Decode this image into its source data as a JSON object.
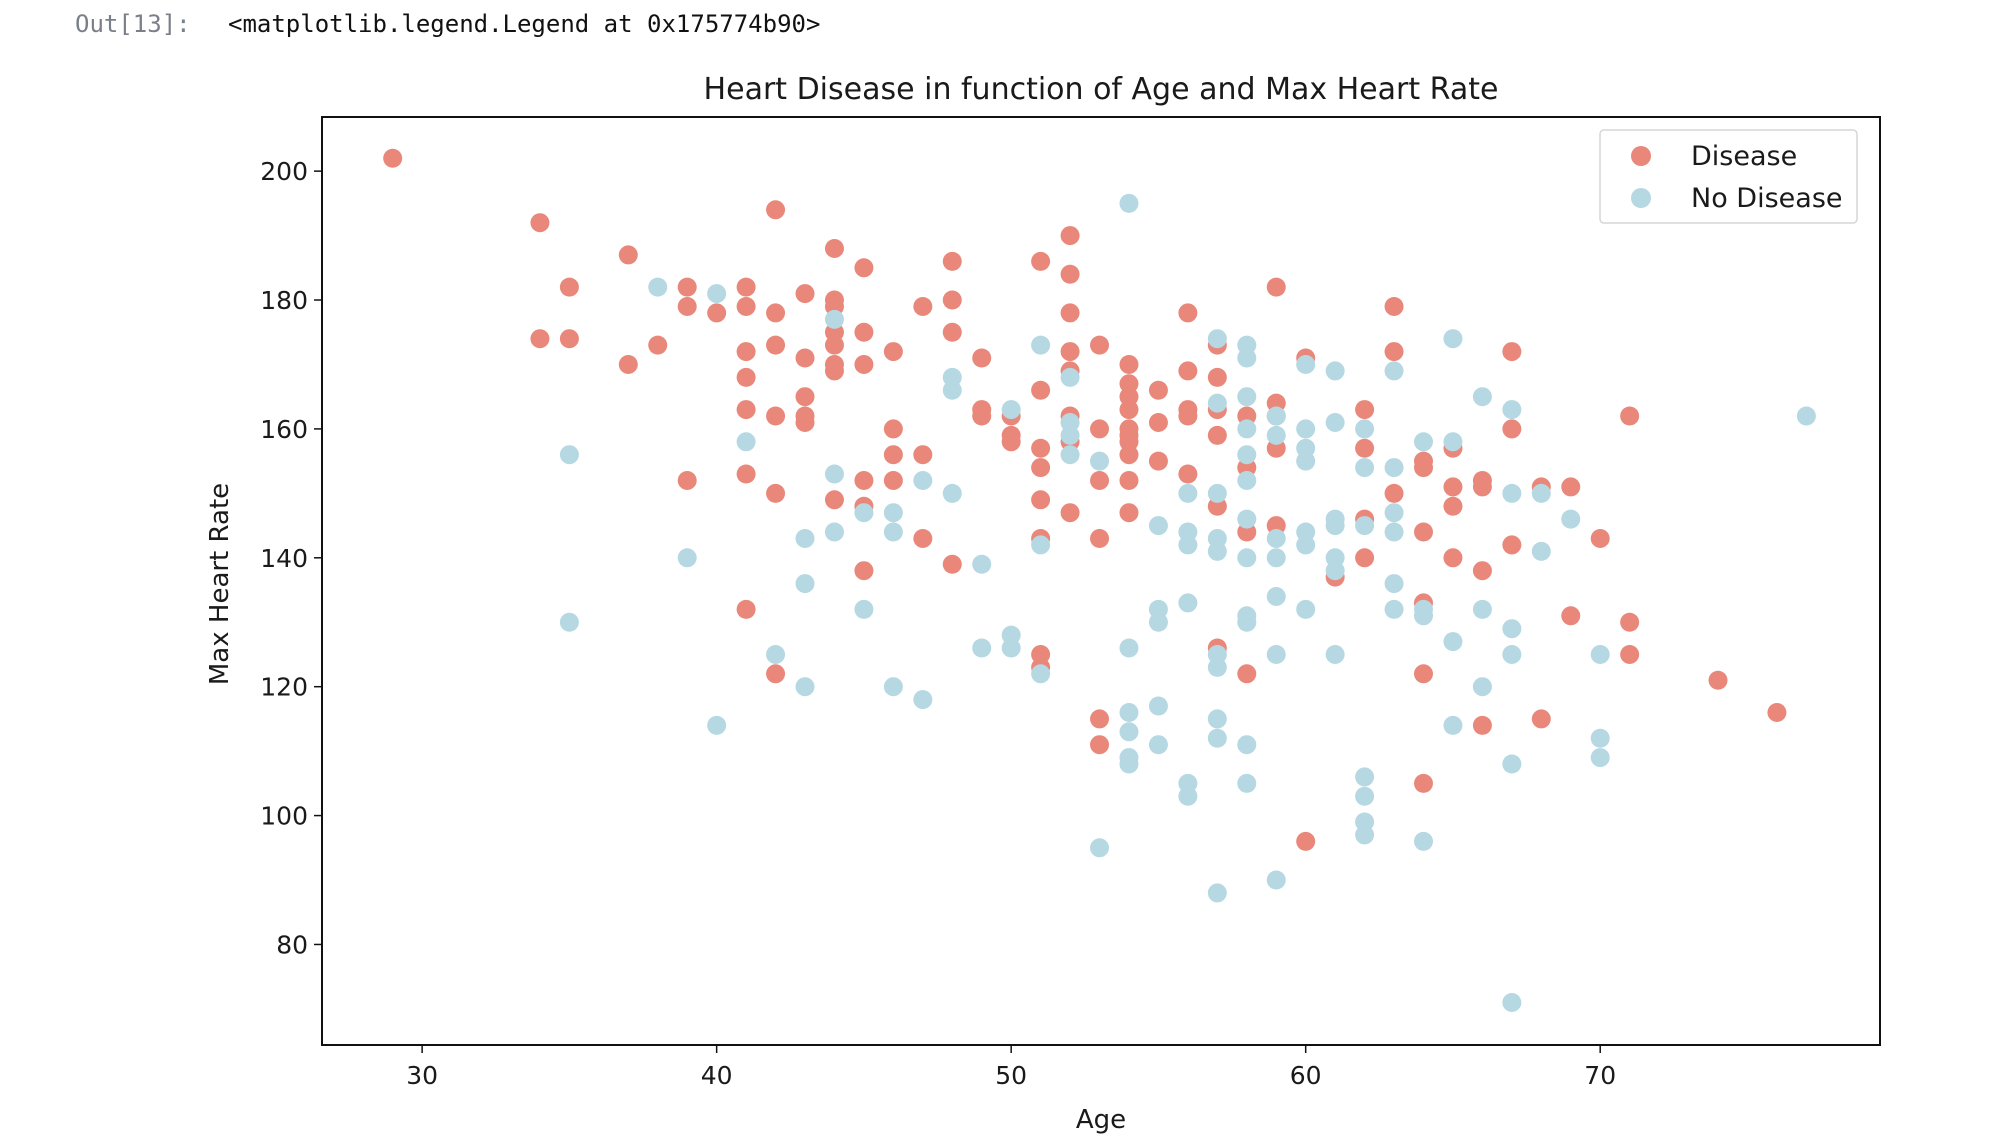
{
  "output": {
    "prompt": "Out[13]:",
    "text": "<matplotlib.legend.Legend at 0x175774b90>"
  },
  "colors": {
    "disease": "#E9887A",
    "no_disease": "#B5D8E3"
  },
  "chart_data": {
    "type": "scatter",
    "title": "Heart Disease in function of Age and Max Heart Rate",
    "xlabel": "Age",
    "ylabel": "Max Heart Rate",
    "xlim": [
      26.6,
      79.5
    ],
    "ylim": [
      64.4,
      208.4
    ],
    "xticks": [
      30,
      40,
      50,
      60,
      70
    ],
    "yticks": [
      80,
      100,
      120,
      140,
      160,
      180,
      200
    ],
    "grid": false,
    "legend": {
      "placement": "top-right",
      "entries": [
        "Disease",
        "No Disease"
      ]
    },
    "series": [
      {
        "name": "Disease",
        "points": [
          [
            29,
            202
          ],
          [
            34,
            192
          ],
          [
            34,
            174
          ],
          [
            35,
            182
          ],
          [
            35,
            174
          ],
          [
            37,
            187
          ],
          [
            37,
            170
          ],
          [
            38,
            173
          ],
          [
            39,
            182
          ],
          [
            39,
            179
          ],
          [
            39,
            152
          ],
          [
            40,
            178
          ],
          [
            41,
            182
          ],
          [
            41,
            179
          ],
          [
            41,
            172
          ],
          [
            41,
            168
          ],
          [
            41,
            163
          ],
          [
            41,
            153
          ],
          [
            41,
            132
          ],
          [
            42,
            194
          ],
          [
            42,
            178
          ],
          [
            42,
            173
          ],
          [
            42,
            162
          ],
          [
            42,
            150
          ],
          [
            42,
            122
          ],
          [
            43,
            181
          ],
          [
            43,
            171
          ],
          [
            43,
            165
          ],
          [
            43,
            162
          ],
          [
            43,
            161
          ],
          [
            44,
            188
          ],
          [
            44,
            180
          ],
          [
            44,
            179
          ],
          [
            44,
            175
          ],
          [
            44,
            173
          ],
          [
            44,
            170
          ],
          [
            44,
            169
          ],
          [
            44,
            149
          ],
          [
            45,
            185
          ],
          [
            45,
            175
          ],
          [
            45,
            170
          ],
          [
            45,
            152
          ],
          [
            45,
            148
          ],
          [
            45,
            138
          ],
          [
            46,
            172
          ],
          [
            46,
            160
          ],
          [
            46,
            156
          ],
          [
            46,
            152
          ],
          [
            47,
            179
          ],
          [
            47,
            156
          ],
          [
            47,
            143
          ],
          [
            48,
            186
          ],
          [
            48,
            180
          ],
          [
            48,
            175
          ],
          [
            48,
            139
          ],
          [
            49,
            171
          ],
          [
            49,
            163
          ],
          [
            49,
            162
          ],
          [
            50,
            162
          ],
          [
            50,
            159
          ],
          [
            50,
            158
          ],
          [
            51,
            186
          ],
          [
            51,
            166
          ],
          [
            51,
            157
          ],
          [
            51,
            154
          ],
          [
            51,
            149
          ],
          [
            51,
            143
          ],
          [
            51,
            125
          ],
          [
            51,
            123
          ],
          [
            52,
            190
          ],
          [
            52,
            184
          ],
          [
            52,
            178
          ],
          [
            52,
            172
          ],
          [
            52,
            169
          ],
          [
            52,
            162
          ],
          [
            52,
            158
          ],
          [
            52,
            147
          ],
          [
            53,
            173
          ],
          [
            53,
            160
          ],
          [
            53,
            152
          ],
          [
            53,
            143
          ],
          [
            53,
            115
          ],
          [
            53,
            111
          ],
          [
            54,
            170
          ],
          [
            54,
            167
          ],
          [
            54,
            165
          ],
          [
            54,
            163
          ],
          [
            54,
            160
          ],
          [
            54,
            159
          ],
          [
            54,
            158
          ],
          [
            54,
            156
          ],
          [
            54,
            152
          ],
          [
            54,
            147
          ],
          [
            55,
            166
          ],
          [
            55,
            161
          ],
          [
            55,
            155
          ],
          [
            56,
            178
          ],
          [
            56,
            169
          ],
          [
            56,
            163
          ],
          [
            56,
            162
          ],
          [
            56,
            153
          ],
          [
            57,
            173
          ],
          [
            57,
            168
          ],
          [
            57,
            163
          ],
          [
            57,
            159
          ],
          [
            57,
            148
          ],
          [
            57,
            126
          ],
          [
            58,
            162
          ],
          [
            58,
            154
          ],
          [
            58,
            144
          ],
          [
            58,
            122
          ],
          [
            59,
            182
          ],
          [
            59,
            164
          ],
          [
            59,
            162
          ],
          [
            59,
            157
          ],
          [
            59,
            145
          ],
          [
            60,
            171
          ],
          [
            60,
            96
          ],
          [
            61,
            137
          ],
          [
            62,
            163
          ],
          [
            62,
            157
          ],
          [
            62,
            146
          ],
          [
            62,
            140
          ],
          [
            63,
            179
          ],
          [
            63,
            172
          ],
          [
            63,
            150
          ],
          [
            64,
            155
          ],
          [
            64,
            154
          ],
          [
            64,
            144
          ],
          [
            64,
            133
          ],
          [
            64,
            122
          ],
          [
            64,
            105
          ],
          [
            65,
            157
          ],
          [
            65,
            151
          ],
          [
            65,
            148
          ],
          [
            65,
            140
          ],
          [
            66,
            152
          ],
          [
            66,
            151
          ],
          [
            66,
            138
          ],
          [
            66,
            114
          ],
          [
            67,
            172
          ],
          [
            67,
            160
          ],
          [
            67,
            142
          ],
          [
            68,
            151
          ],
          [
            68,
            115
          ],
          [
            69,
            151
          ],
          [
            69,
            131
          ],
          [
            70,
            143
          ],
          [
            71,
            162
          ],
          [
            71,
            130
          ],
          [
            71,
            125
          ],
          [
            74,
            121
          ],
          [
            76,
            116
          ]
        ]
      },
      {
        "name": "No Disease",
        "points": [
          [
            35,
            156
          ],
          [
            35,
            130
          ],
          [
            38,
            182
          ],
          [
            39,
            140
          ],
          [
            40,
            181
          ],
          [
            40,
            114
          ],
          [
            41,
            158
          ],
          [
            42,
            125
          ],
          [
            43,
            143
          ],
          [
            43,
            136
          ],
          [
            43,
            120
          ],
          [
            44,
            177
          ],
          [
            44,
            153
          ],
          [
            44,
            144
          ],
          [
            45,
            147
          ],
          [
            45,
            132
          ],
          [
            46,
            147
          ],
          [
            46,
            144
          ],
          [
            46,
            120
          ],
          [
            47,
            152
          ],
          [
            47,
            118
          ],
          [
            48,
            168
          ],
          [
            48,
            166
          ],
          [
            48,
            150
          ],
          [
            49,
            139
          ],
          [
            49,
            126
          ],
          [
            50,
            163
          ],
          [
            50,
            128
          ],
          [
            50,
            126
          ],
          [
            51,
            173
          ],
          [
            51,
            142
          ],
          [
            51,
            122
          ],
          [
            52,
            168
          ],
          [
            52,
            161
          ],
          [
            52,
            159
          ],
          [
            52,
            156
          ],
          [
            53,
            155
          ],
          [
            53,
            95
          ],
          [
            54,
            195
          ],
          [
            54,
            126
          ],
          [
            54,
            116
          ],
          [
            54,
            113
          ],
          [
            54,
            109
          ],
          [
            54,
            108
          ],
          [
            55,
            145
          ],
          [
            55,
            132
          ],
          [
            55,
            130
          ],
          [
            55,
            117
          ],
          [
            55,
            111
          ],
          [
            56,
            150
          ],
          [
            56,
            144
          ],
          [
            56,
            142
          ],
          [
            56,
            133
          ],
          [
            56,
            105
          ],
          [
            56,
            103
          ],
          [
            57,
            174
          ],
          [
            57,
            164
          ],
          [
            57,
            150
          ],
          [
            57,
            143
          ],
          [
            57,
            141
          ],
          [
            57,
            125
          ],
          [
            57,
            123
          ],
          [
            57,
            115
          ],
          [
            57,
            112
          ],
          [
            57,
            88
          ],
          [
            58,
            173
          ],
          [
            58,
            171
          ],
          [
            58,
            165
          ],
          [
            58,
            160
          ],
          [
            58,
            156
          ],
          [
            58,
            152
          ],
          [
            58,
            146
          ],
          [
            58,
            140
          ],
          [
            58,
            131
          ],
          [
            58,
            130
          ],
          [
            58,
            111
          ],
          [
            58,
            105
          ],
          [
            59,
            162
          ],
          [
            59,
            159
          ],
          [
            59,
            143
          ],
          [
            59,
            140
          ],
          [
            59,
            134
          ],
          [
            59,
            125
          ],
          [
            59,
            90
          ],
          [
            60,
            170
          ],
          [
            60,
            160
          ],
          [
            60,
            157
          ],
          [
            60,
            155
          ],
          [
            60,
            144
          ],
          [
            60,
            142
          ],
          [
            60,
            132
          ],
          [
            61,
            169
          ],
          [
            61,
            161
          ],
          [
            61,
            146
          ],
          [
            61,
            145
          ],
          [
            61,
            140
          ],
          [
            61,
            138
          ],
          [
            61,
            125
          ],
          [
            62,
            160
          ],
          [
            62,
            154
          ],
          [
            62,
            145
          ],
          [
            62,
            106
          ],
          [
            62,
            103
          ],
          [
            62,
            99
          ],
          [
            62,
            97
          ],
          [
            63,
            169
          ],
          [
            63,
            154
          ],
          [
            63,
            147
          ],
          [
            63,
            144
          ],
          [
            63,
            136
          ],
          [
            63,
            132
          ],
          [
            64,
            158
          ],
          [
            64,
            132
          ],
          [
            64,
            131
          ],
          [
            64,
            96
          ],
          [
            65,
            174
          ],
          [
            65,
            158
          ],
          [
            65,
            127
          ],
          [
            65,
            114
          ],
          [
            66,
            165
          ],
          [
            66,
            132
          ],
          [
            66,
            120
          ],
          [
            67,
            163
          ],
          [
            67,
            150
          ],
          [
            67,
            129
          ],
          [
            67,
            125
          ],
          [
            67,
            108
          ],
          [
            67,
            71
          ],
          [
            68,
            150
          ],
          [
            68,
            141
          ],
          [
            69,
            146
          ],
          [
            70,
            125
          ],
          [
            70,
            112
          ],
          [
            70,
            109
          ],
          [
            77,
            162
          ]
        ]
      }
    ]
  }
}
